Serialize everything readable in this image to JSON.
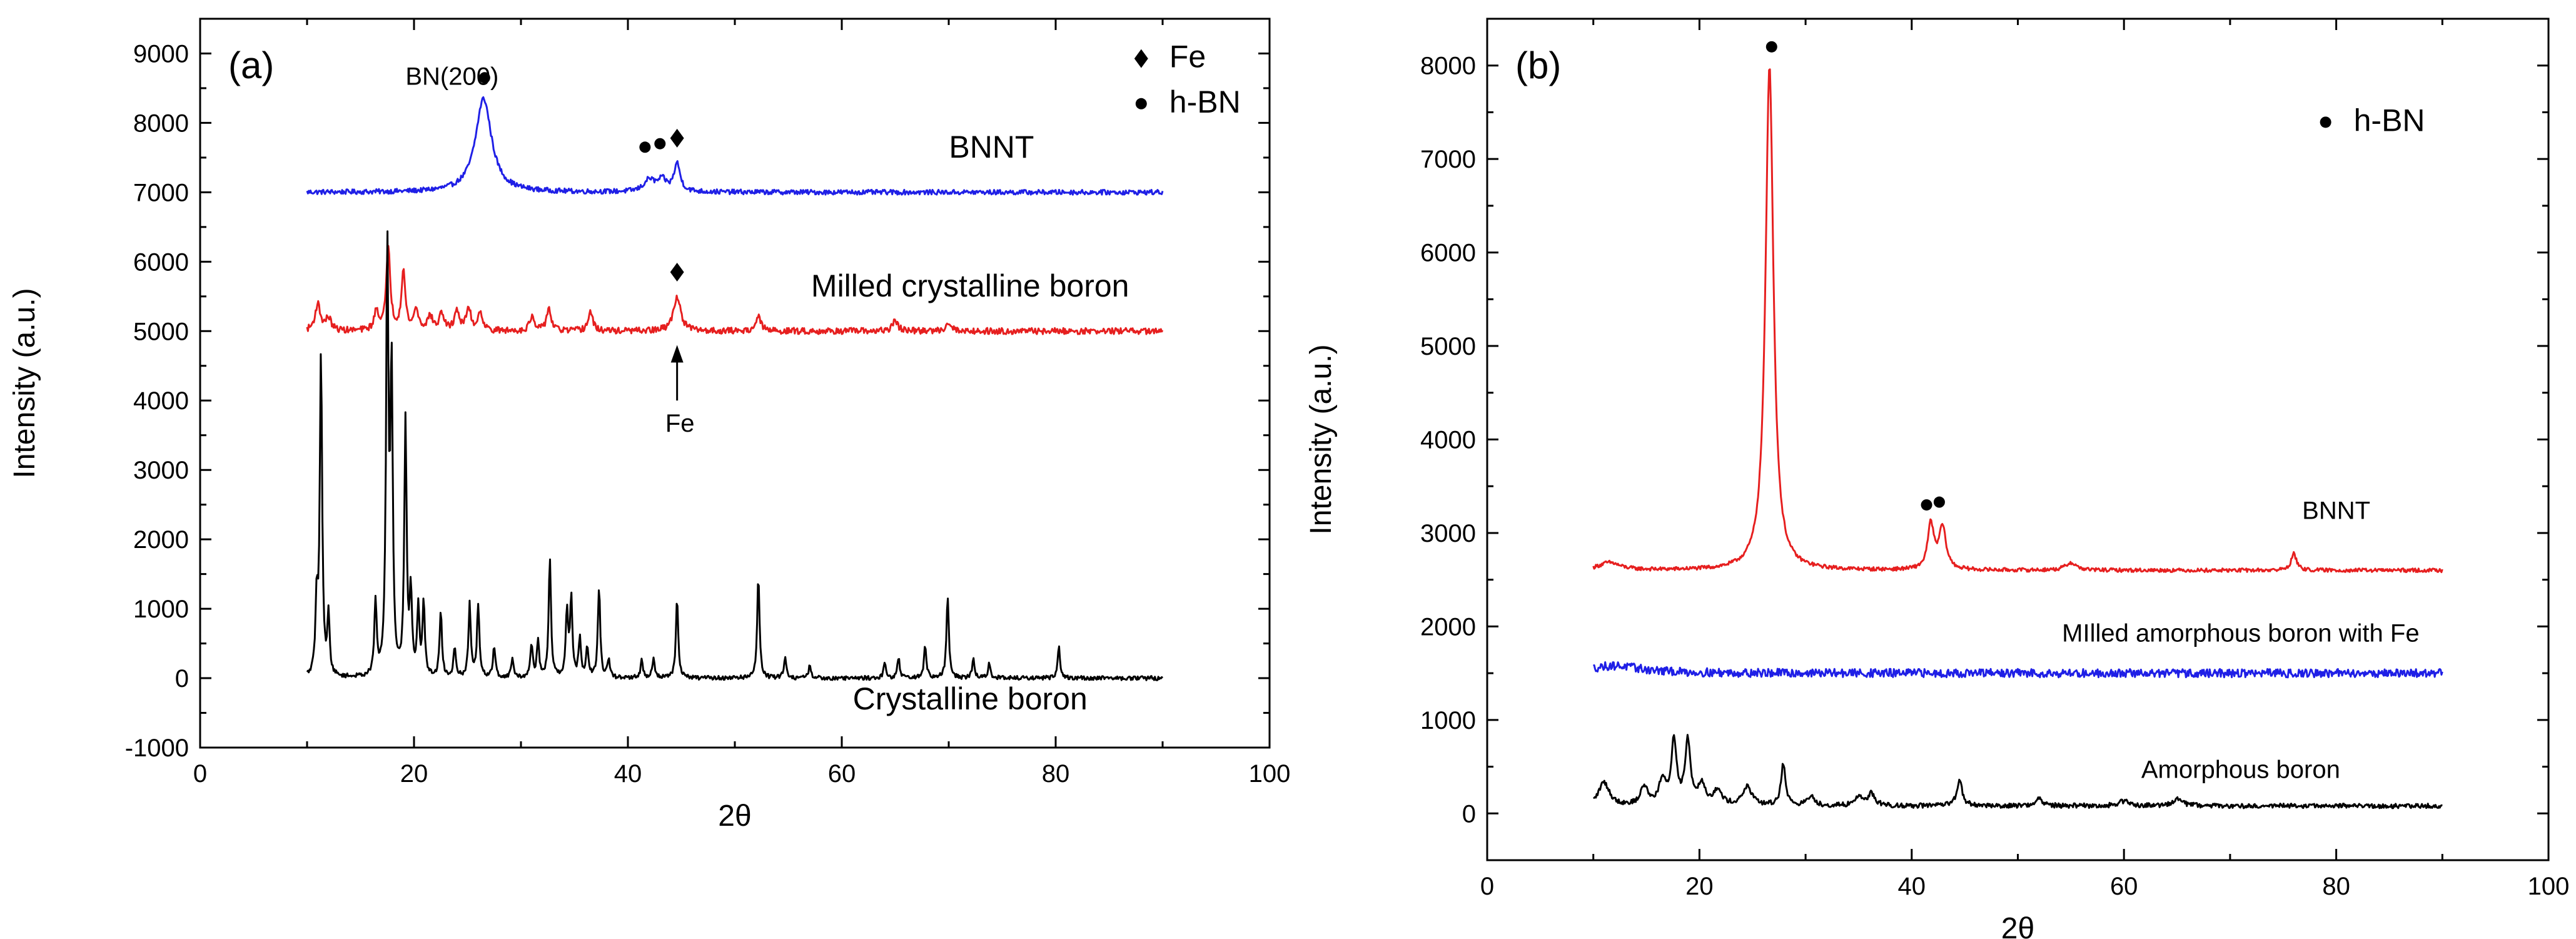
{
  "chart_data": [
    {
      "type": "line",
      "panel_label": "(a)",
      "xlabel": "2θ",
      "ylabel": "Intensity (a.u.)",
      "xlim": [
        0,
        100
      ],
      "ylim": [
        -1000,
        9500
      ],
      "xticks": [
        0,
        20,
        40,
        60,
        80,
        100
      ],
      "yticks": [
        -1000,
        0,
        1000,
        2000,
        3000,
        4000,
        5000,
        6000,
        7000,
        8000,
        9000
      ],
      "legend": {
        "position": "top-right",
        "entries": [
          {
            "marker": "diamond",
            "label": "Fe"
          },
          {
            "marker": "circle",
            "label": "h-BN"
          }
        ]
      },
      "series": [
        {
          "name": "BNNT",
          "color": "#1f1fe6",
          "baseline": 7000,
          "noise": 35,
          "peaks": [
            [
              26.5,
              1350,
              0.9
            ],
            [
              42.0,
              170,
              0.6
            ],
            [
              43.2,
              160,
              0.5
            ],
            [
              44.6,
              400,
              0.35
            ]
          ]
        },
        {
          "name": "Milled crystalline boron",
          "color": "#e61f1f",
          "baseline": 5000,
          "noise": 45,
          "peaks": [
            [
              11.0,
              380,
              0.3
            ],
            [
              12.0,
              180,
              0.3
            ],
            [
              16.5,
              280,
              0.25
            ],
            [
              17.6,
              1200,
              0.22
            ],
            [
              19.0,
              850,
              0.22
            ],
            [
              20.2,
              300,
              0.25
            ],
            [
              21.5,
              200,
              0.3
            ],
            [
              22.6,
              250,
              0.25
            ],
            [
              24.0,
              300,
              0.25
            ],
            [
              25.1,
              330,
              0.25
            ],
            [
              26.2,
              280,
              0.25
            ],
            [
              31.0,
              200,
              0.25
            ],
            [
              32.6,
              330,
              0.25
            ],
            [
              36.5,
              280,
              0.25
            ],
            [
              44.6,
              500,
              0.4
            ],
            [
              52.2,
              200,
              0.3
            ],
            [
              65.0,
              150,
              0.3
            ],
            [
              70.0,
              130,
              0.3
            ]
          ]
        },
        {
          "name": "Crystalline boron",
          "color": "#000000",
          "baseline": 0,
          "noise": 30,
          "peaks": [
            [
              10.9,
              1050,
              0.13
            ],
            [
              11.3,
              4650,
              0.13
            ],
            [
              12.0,
              850,
              0.13
            ],
            [
              16.4,
              1050,
              0.13
            ],
            [
              17.5,
              6100,
              0.13
            ],
            [
              17.9,
              4350,
              0.13
            ],
            [
              19.2,
              3650,
              0.13
            ],
            [
              19.7,
              1150,
              0.13
            ],
            [
              20.4,
              950,
              0.13
            ],
            [
              20.9,
              1050,
              0.13
            ],
            [
              22.5,
              950,
              0.13
            ],
            [
              23.8,
              450,
              0.13
            ],
            [
              25.2,
              1050,
              0.13
            ],
            [
              26.0,
              1050,
              0.13
            ],
            [
              27.5,
              450,
              0.13
            ],
            [
              29.2,
              280,
              0.13
            ],
            [
              31.0,
              480,
              0.13
            ],
            [
              31.6,
              500,
              0.13
            ],
            [
              32.7,
              1700,
              0.13
            ],
            [
              34.3,
              950,
              0.13
            ],
            [
              34.7,
              1120,
              0.13
            ],
            [
              35.5,
              550,
              0.13
            ],
            [
              36.2,
              450,
              0.13
            ],
            [
              37.3,
              1300,
              0.13
            ],
            [
              38.2,
              250,
              0.13
            ],
            [
              41.3,
              250,
              0.13
            ],
            [
              42.4,
              300,
              0.13
            ],
            [
              44.6,
              1150,
              0.13
            ],
            [
              52.2,
              1480,
              0.13
            ],
            [
              54.7,
              320,
              0.13
            ],
            [
              57.0,
              180,
              0.13
            ],
            [
              64.0,
              220,
              0.13
            ],
            [
              65.3,
              300,
              0.13
            ],
            [
              67.8,
              480,
              0.13
            ],
            [
              69.9,
              1180,
              0.13
            ],
            [
              72.3,
              280,
              0.13
            ],
            [
              73.8,
              220,
              0.13
            ],
            [
              80.3,
              480,
              0.13
            ]
          ]
        }
      ],
      "series_labels": [
        {
          "text": "BNNT",
          "x": 74,
          "y": 7500,
          "anchor": "middle",
          "size": 50
        },
        {
          "text": "Milled crystalline boron",
          "x": 72,
          "y": 5500,
          "anchor": "middle",
          "size": 50
        },
        {
          "text": "Crystalline boron",
          "x": 72,
          "y": -450,
          "anchor": "middle",
          "size": 50
        }
      ],
      "annotations": [
        {
          "text": "BN(200)",
          "x": 19.2,
          "y": 8550,
          "size": 40
        },
        {
          "text": "Fe",
          "x": 43.5,
          "y": 3550,
          "size": 40
        }
      ],
      "arrow": {
        "x": 44.6,
        "y_from": 4000,
        "y_to": 4800
      },
      "markers": [
        {
          "shape": "circle",
          "x": 26.6,
          "y": 8650
        },
        {
          "shape": "circle",
          "x": 41.6,
          "y": 7650
        },
        {
          "shape": "circle",
          "x": 43.0,
          "y": 7700
        },
        {
          "shape": "diamond",
          "x": 44.6,
          "y": 7780
        },
        {
          "shape": "diamond",
          "x": 44.6,
          "y": 5850
        }
      ],
      "legend_pos": {
        "x": 88,
        "y_top": 8800,
        "dy": 650
      }
    },
    {
      "type": "line",
      "panel_label": "(b)",
      "xlabel": "2θ",
      "ylabel": "Intensity (a.u.)",
      "xlim": [
        0,
        100
      ],
      "ylim": [
        -500,
        8500
      ],
      "xticks": [
        0,
        20,
        40,
        60,
        80,
        100
      ],
      "yticks": [
        0,
        1000,
        2000,
        3000,
        4000,
        5000,
        6000,
        7000,
        8000
      ],
      "legend": {
        "position": "top-right",
        "entries": [
          {
            "marker": "circle",
            "label": "h-BN"
          }
        ]
      },
      "series": [
        {
          "name": "BNNT",
          "color": "#e61f1f",
          "baseline": 2600,
          "noise": 20,
          "peaks": [
            [
              11.5,
              80,
              1.2
            ],
            [
              26.6,
              5400,
              0.45
            ],
            [
              41.8,
              480,
              0.35
            ],
            [
              42.9,
              450,
              0.4
            ],
            [
              55.0,
              80,
              0.6
            ],
            [
              76.0,
              180,
              0.3
            ]
          ]
        },
        {
          "name": "MIlled amorphous boron with Fe",
          "color": "#1f1fe6",
          "baseline": 1500,
          "noise": 45,
          "peaks": [
            [
              12.0,
              80,
              3.0
            ]
          ]
        },
        {
          "name": "Amorphous boron",
          "color": "#000000",
          "baseline": 80,
          "noise": 25,
          "peaks": [
            [
              11.0,
              250,
              0.6
            ],
            [
              14.8,
              200,
              0.4
            ],
            [
              16.5,
              250,
              0.4
            ],
            [
              17.6,
              680,
              0.3
            ],
            [
              18.9,
              680,
              0.3
            ],
            [
              20.2,
              220,
              0.4
            ],
            [
              21.7,
              150,
              0.5
            ],
            [
              24.5,
              200,
              0.5
            ],
            [
              27.9,
              450,
              0.25
            ],
            [
              30.5,
              100,
              0.4
            ],
            [
              35.0,
              100,
              0.4
            ],
            [
              36.2,
              130,
              0.4
            ],
            [
              44.5,
              280,
              0.3
            ],
            [
              52.0,
              80,
              0.4
            ],
            [
              60.0,
              50,
              0.6
            ],
            [
              65.0,
              70,
              0.6
            ]
          ]
        }
      ],
      "series_labels": [
        {
          "text": "BNNT",
          "x": 80,
          "y": 3150,
          "anchor": "middle",
          "size": 40
        },
        {
          "text": "MIlled amorphous boron with Fe",
          "x": 71,
          "y": 1840,
          "anchor": "middle",
          "size": 40
        },
        {
          "text": "Amorphous boron",
          "x": 71,
          "y": 380,
          "anchor": "middle",
          "size": 40
        }
      ],
      "annotations": [],
      "arrow": null,
      "markers": [
        {
          "shape": "circle",
          "x": 26.8,
          "y": 8200
        },
        {
          "shape": "circle",
          "x": 41.4,
          "y": 3300
        },
        {
          "shape": "circle",
          "x": 42.6,
          "y": 3330
        }
      ],
      "legend_pos": {
        "x": 79,
        "y_top": 7300,
        "dy": 650
      }
    }
  ]
}
